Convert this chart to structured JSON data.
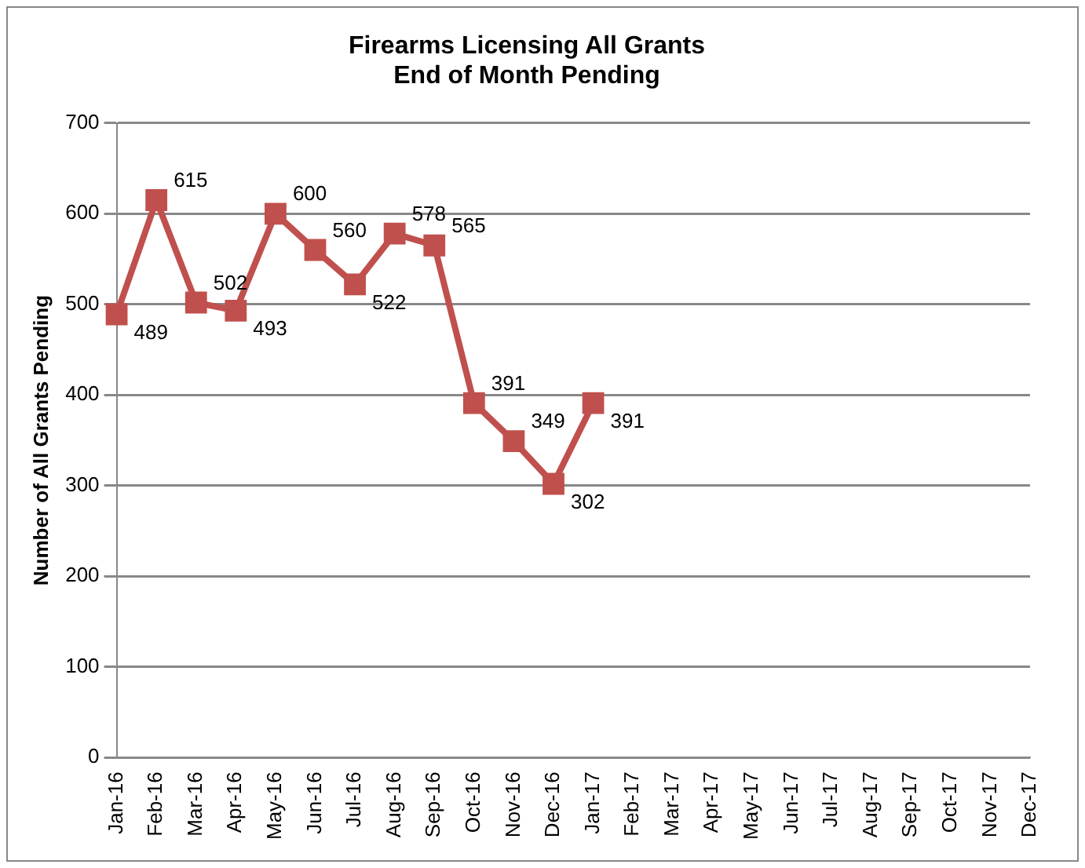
{
  "chart_data": {
    "type": "line",
    "title": "Firearms Licensing All Grants\nEnd of Month Pending",
    "ylabel": "Number of All Grants Pending",
    "categories": [
      "Jan-16",
      "Feb-16",
      "Mar-16",
      "Apr-16",
      "May-16",
      "Jun-16",
      "Jul-16",
      "Aug-16",
      "Sep-16",
      "Oct-16",
      "Nov-16",
      "Dec-16",
      "Jan-17",
      "Feb-17",
      "Mar-17",
      "Apr-17",
      "May-17",
      "Jun-17",
      "Jul-17",
      "Aug-17",
      "Sep-17",
      "Oct-17",
      "Nov-17",
      "Dec-17"
    ],
    "series": [
      {
        "color": "#c0504d",
        "values": [
          489,
          615,
          502,
          493,
          600,
          560,
          522,
          578,
          565,
          391,
          349,
          302,
          391,
          null,
          null,
          null,
          null,
          null,
          null,
          null,
          null,
          null,
          null,
          null
        ]
      }
    ],
    "ylim": [
      0,
      700
    ],
    "yticks": [
      0,
      100,
      200,
      300,
      400,
      500,
      600,
      700
    ],
    "grid": "y",
    "legend": false,
    "marker": "square",
    "line_style": "solid",
    "data_labels": true
  }
}
